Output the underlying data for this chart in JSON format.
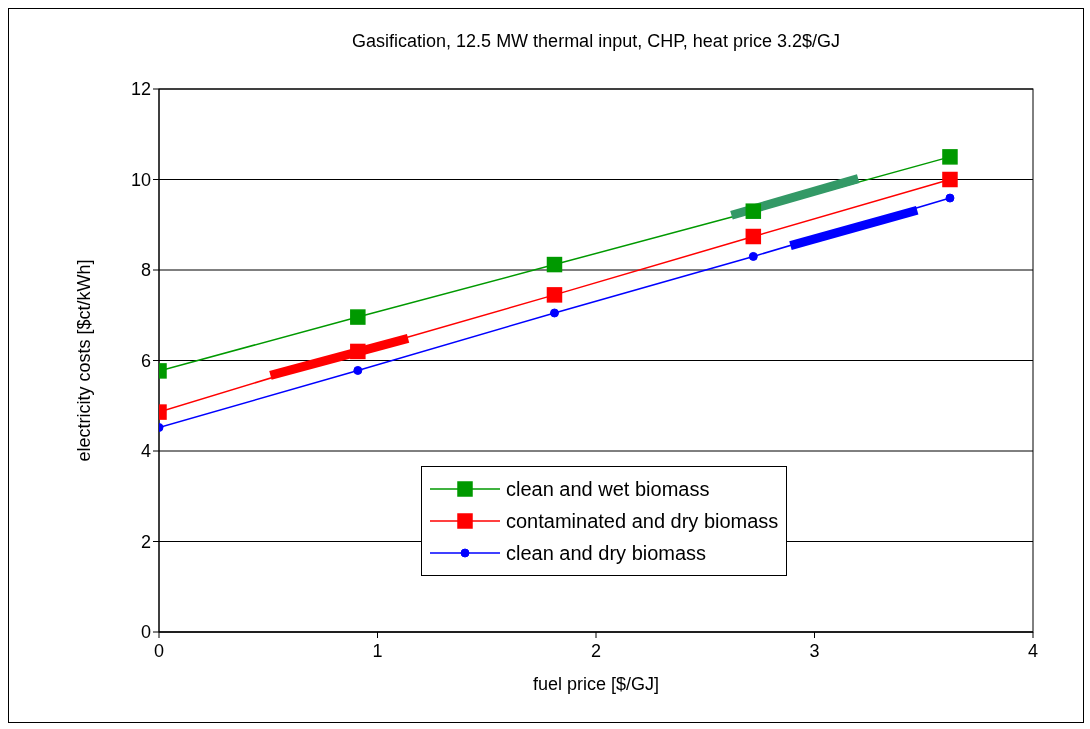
{
  "chart_data": {
    "type": "line",
    "title": "Gasification, 12.5 MW thermal input, CHP, heat price 3.2$/GJ",
    "xlabel": "fuel price [$/GJ]",
    "ylabel": "electricity costs [$ct/kWh]",
    "xlim": [
      0,
      4
    ],
    "xticks": [
      0,
      1,
      2,
      3,
      4
    ],
    "ylim": [
      0,
      12
    ],
    "yticks": [
      0,
      2,
      4,
      6,
      8,
      10,
      12
    ],
    "grid": "y",
    "legend": "bottom",
    "series": [
      {
        "name": "clean and wet biomass",
        "color": "#009900",
        "marker": "square",
        "x": [
          0,
          0.91,
          1.81,
          2.72,
          3.62
        ],
        "values": [
          5.77,
          6.96,
          8.12,
          9.3,
          10.5
        ]
      },
      {
        "name": "contaminated and dry biomass",
        "color": "#ff0000",
        "marker": "square",
        "x": [
          0,
          0.91,
          1.81,
          2.72,
          3.62
        ],
        "values": [
          4.86,
          6.2,
          7.45,
          8.74,
          10.0
        ]
      },
      {
        "name": "clean and dry biomass",
        "color": "#0000ff",
        "marker": "circle",
        "x": [
          0,
          0.91,
          1.81,
          2.72,
          3.62
        ],
        "values": [
          4.52,
          5.78,
          7.05,
          8.3,
          9.59
        ]
      },
      {
        "color": "#ff0000",
        "marker": "none",
        "x": [
          0.51,
          1.14
        ],
        "values": [
          5.67,
          6.49
        ]
      },
      {
        "color": "#339966",
        "marker": "none",
        "x": [
          2.62,
          3.2
        ],
        "values": [
          9.21,
          10.02
        ]
      },
      {
        "color": "#0000ff",
        "marker": "none",
        "x": [
          2.89,
          3.47
        ],
        "values": [
          8.54,
          9.32
        ]
      }
    ]
  }
}
